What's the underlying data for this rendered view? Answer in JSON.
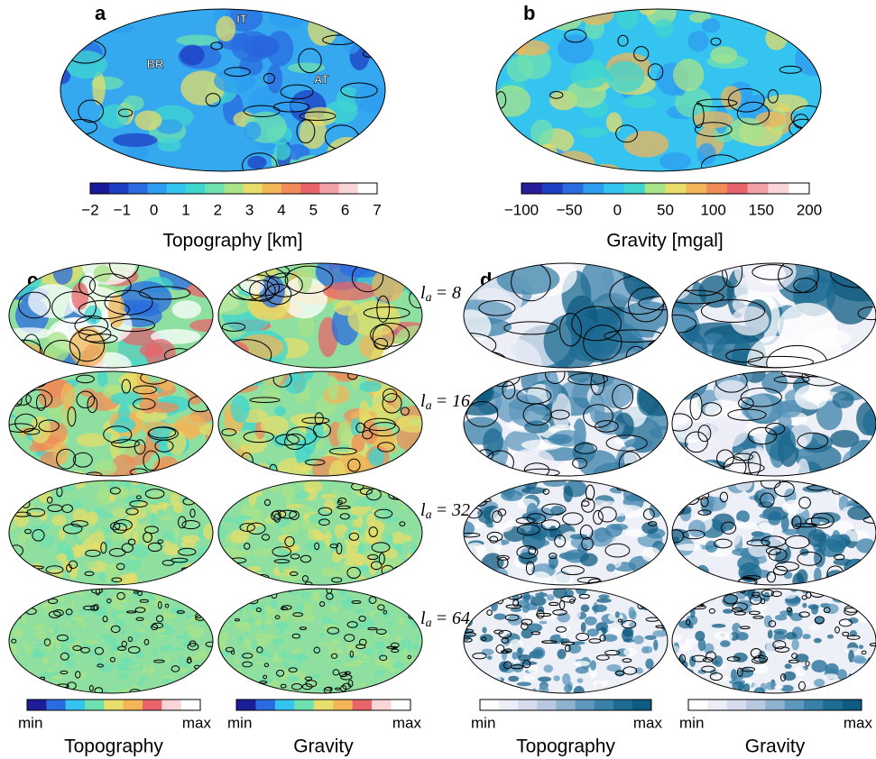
{
  "panels": [
    {
      "label": "a",
      "annotations": [
        "IT",
        "BR",
        "AT"
      ],
      "colorbar": {
        "ticks": [
          "−2",
          "−1",
          "0",
          "1",
          "2",
          "3",
          "4",
          "5",
          "6",
          "7"
        ],
        "title": "Topography [km]"
      }
    },
    {
      "label": "b",
      "colorbar": {
        "ticks": [
          "−100",
          "−50",
          "0",
          "50",
          "100",
          "150",
          "200"
        ],
        "title": "Gravity [mgal]"
      }
    },
    {
      "label": "c",
      "colorbars": [
        {
          "min": "min",
          "max": "max",
          "title": "Topography"
        },
        {
          "min": "min",
          "max": "max",
          "title": "Gravity"
        }
      ]
    },
    {
      "label": "d",
      "colorbars": [
        {
          "min": "min",
          "max": "max",
          "title": "Topography"
        },
        {
          "min": "min",
          "max": "max",
          "title": "Gravity"
        }
      ]
    }
  ],
  "row_labels": [
    {
      "symbol": "l",
      "subscript": "a",
      "equals": "= 8"
    },
    {
      "symbol": "l",
      "subscript": "a",
      "equals": "= 16"
    },
    {
      "symbol": "l",
      "subscript": "a",
      "equals": "= 32"
    },
    {
      "symbol": "l",
      "subscript": "a",
      "equals": "= 64"
    }
  ]
}
